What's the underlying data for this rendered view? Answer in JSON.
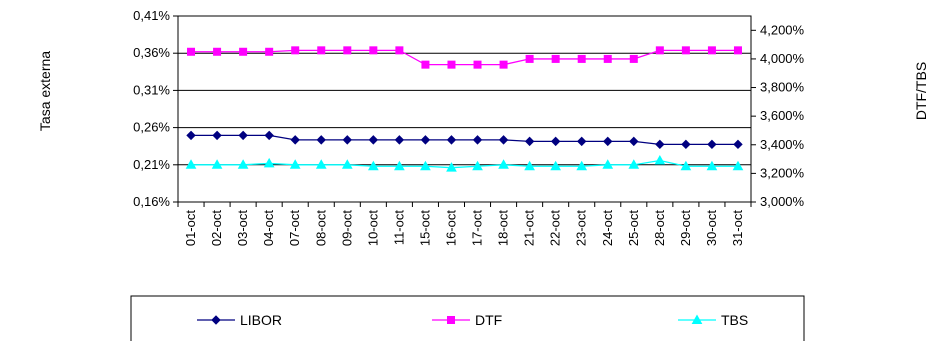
{
  "chart_data": {
    "type": "line",
    "title": "",
    "xlabel": "",
    "ylabel": "Tasa externa",
    "y2label": "DTF/TBS",
    "categories": [
      "01-oct",
      "02-oct",
      "03-oct",
      "04-oct",
      "07-oct",
      "08-oct",
      "09-oct",
      "10-oct",
      "11-oct",
      "15-oct",
      "16-oct",
      "17-oct",
      "18-oct",
      "21-oct",
      "22-oct",
      "23-oct",
      "24-oct",
      "25-oct",
      "28-oct",
      "29-oct",
      "30-oct",
      "31-oct"
    ],
    "ylim": [
      0.16,
      0.41
    ],
    "y_ticks": [
      "0,16%",
      "0,21%",
      "0,26%",
      "0,31%",
      "0,36%",
      "0,41%"
    ],
    "y_tick_values": [
      0.16,
      0.21,
      0.26,
      0.31,
      0.36,
      0.41
    ],
    "y2lim": [
      3.0,
      4.3
    ],
    "y2_ticks": [
      "3,000%",
      "3,200%",
      "3,400%",
      "3,600%",
      "3,800%",
      "4,000%",
      "4,200%"
    ],
    "y2_tick_values": [
      3.0,
      3.2,
      3.4,
      3.6,
      3.8,
      4.0,
      4.2
    ],
    "grid": true,
    "legend_position": "bottom",
    "series": [
      {
        "name": "LIBOR",
        "axis": "left",
        "color": "#000080",
        "marker": "diamond",
        "values": [
          0.2495,
          0.2495,
          0.2495,
          0.2495,
          0.2435,
          0.2435,
          0.2435,
          0.2435,
          0.2435,
          0.2435,
          0.2435,
          0.2435,
          0.2435,
          0.2415,
          0.2415,
          0.2415,
          0.2415,
          0.2415,
          0.2375,
          0.2375,
          0.2375,
          0.2375
        ]
      },
      {
        "name": "DTF",
        "axis": "right",
        "color": "#FF00FF",
        "marker": "square",
        "values": [
          4.05,
          4.05,
          4.05,
          4.05,
          4.06,
          4.06,
          4.06,
          4.06,
          4.06,
          3.96,
          3.96,
          3.96,
          3.96,
          4.0,
          4.0,
          4.0,
          4.0,
          4.0,
          4.06,
          4.06,
          4.06,
          4.06
        ]
      },
      {
        "name": "TBS",
        "axis": "right",
        "color": "#00FFFF",
        "marker": "triangle",
        "values": [
          3.26,
          3.26,
          3.26,
          3.27,
          3.26,
          3.26,
          3.26,
          3.25,
          3.25,
          3.25,
          3.24,
          3.25,
          3.26,
          3.25,
          3.25,
          3.25,
          3.26,
          3.26,
          3.29,
          3.25,
          3.25,
          3.25
        ]
      }
    ]
  }
}
